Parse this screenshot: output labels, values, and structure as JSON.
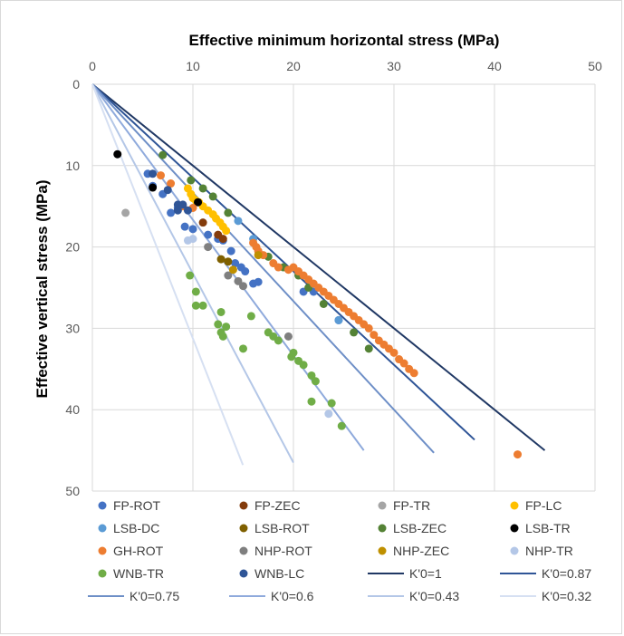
{
  "chart_data": {
    "type": "scatter",
    "title": "",
    "xlabel": "Effective minimum horizontal stress (MPa)",
    "ylabel": "Effective vertical stress (MPa)",
    "xlim": [
      0,
      50
    ],
    "ylim": [
      0,
      50
    ],
    "y_inverted": true,
    "x_axis_position": "top",
    "x_ticks": [
      "0",
      "10",
      "20",
      "30",
      "40",
      "50"
    ],
    "y_ticks": [
      "0",
      "10",
      "20",
      "30",
      "40",
      "50"
    ],
    "grid": "vertical and horizontal gridlines",
    "legend_position": "bottom",
    "series": [
      {
        "name": "FP-ROT",
        "color": "#4472c4",
        "marker": "circle",
        "points": [
          [
            5.5,
            11
          ],
          [
            6,
            12.5
          ],
          [
            7,
            13.5
          ],
          [
            7.8,
            15.8
          ],
          [
            8.5,
            15.2
          ],
          [
            9.2,
            17.5
          ],
          [
            10,
            17.8
          ],
          [
            11.5,
            18.5
          ],
          [
            12.5,
            19
          ],
          [
            13,
            19.2
          ],
          [
            13.8,
            20.5
          ],
          [
            14.2,
            22
          ],
          [
            14.8,
            22.5
          ],
          [
            15.2,
            23
          ],
          [
            16,
            24.5
          ],
          [
            16.5,
            24.3
          ],
          [
            21,
            25.5
          ],
          [
            22,
            25.5
          ],
          [
            24.5,
            29
          ]
        ]
      },
      {
        "name": "FP-ZEC",
        "color": "#843c0c",
        "marker": "circle",
        "points": [
          [
            11,
            17
          ],
          [
            12.5,
            18.5
          ],
          [
            13,
            19
          ]
        ]
      },
      {
        "name": "FP-TR",
        "color": "#a5a5a5",
        "marker": "circle",
        "points": [
          [
            3.3,
            15.8
          ]
        ]
      },
      {
        "name": "FP-LC",
        "color": "#ffc000",
        "marker": "circle",
        "points": [
          [
            9.5,
            12.8
          ],
          [
            9.8,
            13.5
          ],
          [
            10,
            14
          ],
          [
            10.3,
            14.3
          ],
          [
            10.6,
            14.5
          ],
          [
            11,
            15
          ],
          [
            11.5,
            15.5
          ],
          [
            12,
            16
          ],
          [
            12.3,
            16.5
          ],
          [
            12.7,
            17
          ],
          [
            13,
            17.5
          ],
          [
            13.3,
            18
          ]
        ]
      },
      {
        "name": "LSB-DC",
        "color": "#5b9bd5",
        "marker": "circle",
        "points": [
          [
            14.5,
            16.8
          ],
          [
            16,
            19
          ],
          [
            24.5,
            29
          ]
        ]
      },
      {
        "name": "LSB-ROT",
        "color": "#7f6000",
        "marker": "circle",
        "points": [
          [
            12.8,
            21.5
          ],
          [
            13.5,
            21.8
          ]
        ]
      },
      {
        "name": "LSB-ZEC",
        "color": "#548235",
        "marker": "circle",
        "points": [
          [
            7,
            8.7
          ],
          [
            9.8,
            11.8
          ],
          [
            11,
            12.8
          ],
          [
            12,
            13.8
          ],
          [
            13.5,
            15.8
          ],
          [
            17.5,
            21.2
          ],
          [
            19,
            22.5
          ],
          [
            20.5,
            23.5
          ],
          [
            21.5,
            25
          ],
          [
            23,
            27
          ],
          [
            26,
            30.5
          ],
          [
            27.5,
            32.5
          ]
        ]
      },
      {
        "name": "LSB-TR",
        "color": "#000000",
        "marker": "circle",
        "points": [
          [
            2.5,
            8.6
          ],
          [
            6,
            12.7
          ],
          [
            10.5,
            14.5
          ]
        ]
      },
      {
        "name": "GH-ROT",
        "color": "#ed7d31",
        "marker": "circle",
        "points": [
          [
            6.8,
            11.2
          ],
          [
            7.8,
            12.2
          ],
          [
            9,
            15
          ],
          [
            10,
            15.2
          ],
          [
            16,
            19.5
          ],
          [
            16.3,
            20
          ],
          [
            16.5,
            20.5
          ],
          [
            17,
            21
          ],
          [
            18,
            22
          ],
          [
            18.5,
            22.5
          ],
          [
            19.5,
            22.8
          ],
          [
            20,
            22.5
          ],
          [
            20.5,
            23
          ],
          [
            21,
            23.5
          ],
          [
            21.5,
            24
          ],
          [
            22,
            24.5
          ],
          [
            22.5,
            25
          ],
          [
            23,
            25.5
          ],
          [
            23.5,
            26
          ],
          [
            24,
            26.5
          ],
          [
            24.5,
            27
          ],
          [
            25,
            27.5
          ],
          [
            25.5,
            28
          ],
          [
            26,
            28.5
          ],
          [
            26.5,
            29
          ],
          [
            27,
            29.5
          ],
          [
            27.5,
            30
          ],
          [
            28,
            30.8
          ],
          [
            28.5,
            31.5
          ],
          [
            29,
            32
          ],
          [
            29.5,
            32.5
          ],
          [
            30,
            33
          ],
          [
            30.5,
            33.8
          ],
          [
            31,
            34.3
          ],
          [
            31.5,
            35
          ],
          [
            32,
            35.5
          ],
          [
            42.3,
            45.5
          ]
        ]
      },
      {
        "name": "NHP-ROT",
        "color": "#7f7f7f",
        "marker": "circle",
        "points": [
          [
            11.5,
            20
          ],
          [
            13.5,
            23.5
          ],
          [
            14.5,
            24.2
          ],
          [
            15,
            24.8
          ],
          [
            19.5,
            31
          ]
        ]
      },
      {
        "name": "NHP-ZEC",
        "color": "#bf9000",
        "marker": "circle",
        "points": [
          [
            14,
            22.8
          ],
          [
            16.5,
            21
          ]
        ]
      },
      {
        "name": "NHP-TR",
        "color": "#b4c7e7",
        "marker": "circle",
        "points": [
          [
            9.5,
            19.2
          ],
          [
            10,
            19
          ],
          [
            23.5,
            40.5
          ]
        ]
      },
      {
        "name": "WNB-TR",
        "color": "#70ad47",
        "marker": "circle",
        "points": [
          [
            9.7,
            23.5
          ],
          [
            10.3,
            25.5
          ],
          [
            10.3,
            27.2
          ],
          [
            11,
            27.2
          ],
          [
            12.5,
            29.5
          ],
          [
            12.8,
            28
          ],
          [
            12.8,
            30.5
          ],
          [
            13,
            31
          ],
          [
            13.3,
            29.8
          ],
          [
            15,
            32.5
          ],
          [
            15.8,
            28.5
          ],
          [
            17.5,
            30.5
          ],
          [
            18,
            31
          ],
          [
            18.5,
            31.5
          ],
          [
            19.8,
            33.5
          ],
          [
            20,
            33
          ],
          [
            20.5,
            34
          ],
          [
            21,
            34.5
          ],
          [
            21.8,
            35.8
          ],
          [
            22.2,
            36.5
          ],
          [
            21.8,
            39
          ],
          [
            23.8,
            39.2
          ],
          [
            24.8,
            42
          ]
        ]
      },
      {
        "name": "WNB-LC",
        "color": "#2f5597",
        "marker": "circle",
        "points": [
          [
            6,
            11
          ],
          [
            7.5,
            13
          ],
          [
            8.5,
            14.8
          ],
          [
            8.5,
            15.5
          ],
          [
            9,
            14.8
          ],
          [
            9.5,
            15.5
          ]
        ]
      }
    ],
    "lines": [
      {
        "name": "K'0=1",
        "color": "#203864",
        "k": 1,
        "y_end": 45
      },
      {
        "name": "K'0=0.87",
        "color": "#2f5597",
        "k": 0.87,
        "y_end": 43.7
      },
      {
        "name": "K'0=0.75",
        "color": "#6e8fc7",
        "k": 0.75,
        "y_end": 45.3
      },
      {
        "name": "K'0=0.6",
        "color": "#8faadc",
        "k": 0.6,
        "y_end": 45
      },
      {
        "name": "K'0=0.43",
        "color": "#b4c7e7",
        "k": 0.43,
        "y_end": 46.5
      },
      {
        "name": "K'0=0.32",
        "color": "#d6e0f2",
        "k": 0.32,
        "y_end": 46.8
      }
    ]
  }
}
